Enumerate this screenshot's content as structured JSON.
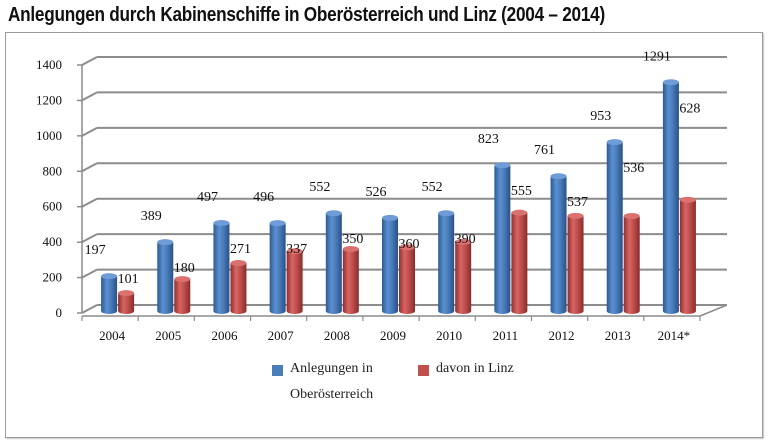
{
  "chart_data": {
    "type": "bar",
    "style": "3d-cylinder-clustered",
    "title": "Anlegungen durch Kabinenschiffe in Oberösterreich und Linz (2004 – 2014)",
    "xlabel": "",
    "ylabel": "",
    "ylim": [
      0,
      1400
    ],
    "yticks": [
      0,
      200,
      400,
      600,
      800,
      1000,
      1200,
      1400
    ],
    "ytick_labels": [
      "0",
      "200",
      "400",
      "600",
      "800",
      "1000",
      "1200",
      "1400"
    ],
    "grid": true,
    "categories": [
      "2004",
      "2005",
      "2006",
      "2007",
      "2008",
      "2009",
      "2010",
      "2011",
      "2012",
      "2013",
      "2014*"
    ],
    "series": [
      {
        "name": "Anlegungen in Oberösterreich",
        "legend_lines": [
          "Anlegungen in",
          "Oberösterreich"
        ],
        "color": "#4a7ebb",
        "values": [
          197,
          389,
          497,
          496,
          552,
          526,
          552,
          823,
          761,
          953,
          1291
        ]
      },
      {
        "name": "davon in Linz",
        "legend_lines": [
          "davon in Linz"
        ],
        "color": "#c0504d",
        "values": [
          101,
          180,
          271,
          337,
          350,
          360,
          390,
          555,
          537,
          536,
          628
        ]
      }
    ],
    "legend_position": "bottom"
  }
}
